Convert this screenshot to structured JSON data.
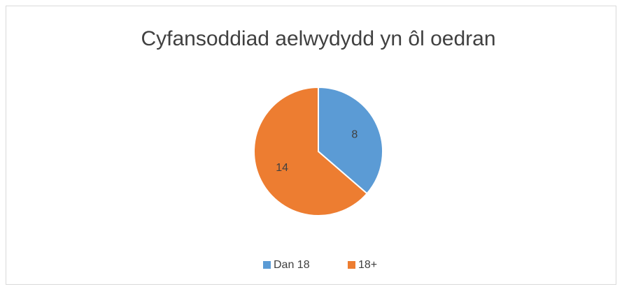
{
  "chart_data": {
    "type": "pie",
    "title": "Cyfansoddiad aelwydydd yn ôl oedran",
    "categories": [
      "Dan 18",
      "18+"
    ],
    "values": [
      8,
      14
    ],
    "colors": [
      "#5b9bd5",
      "#ed7d31"
    ],
    "legend": "bottom"
  }
}
